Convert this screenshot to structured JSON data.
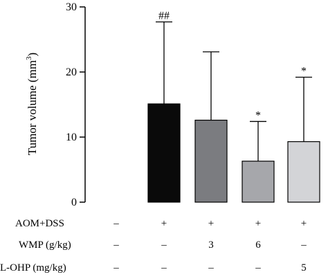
{
  "chart_data": {
    "type": "bar",
    "ylabel": {
      "main": "Tumor volume (mm",
      "sup": "3",
      "close": ")"
    },
    "ylim": [
      0,
      30
    ],
    "yticks": [
      0,
      10,
      20,
      30
    ],
    "grid": false,
    "groups": [
      {
        "value": 0,
        "error": 0,
        "color": "#ffffff",
        "annotation": ""
      },
      {
        "value": 15.1,
        "error": 12.6,
        "color": "#0a0a0a",
        "annotation": "##"
      },
      {
        "value": 12.6,
        "error": 10.5,
        "color": "#7b7c80",
        "annotation": ""
      },
      {
        "value": 6.3,
        "error": 6.1,
        "color": "#a6a7ab",
        "annotation": "*"
      },
      {
        "value": 9.3,
        "error": 9.9,
        "color": "#d3d4d7",
        "annotation": "*"
      }
    ],
    "conditions": [
      {
        "label": "AOM+DSS",
        "values": [
          "–",
          "+",
          "+",
          "+",
          "+"
        ]
      },
      {
        "label": "WMP (g/kg)",
        "values": [
          "–",
          "–",
          "3",
          "6",
          "–"
        ]
      },
      {
        "label": "L-OHP (mg/kg)",
        "values": [
          "–",
          "–",
          "–",
          "–",
          "5"
        ]
      }
    ]
  }
}
